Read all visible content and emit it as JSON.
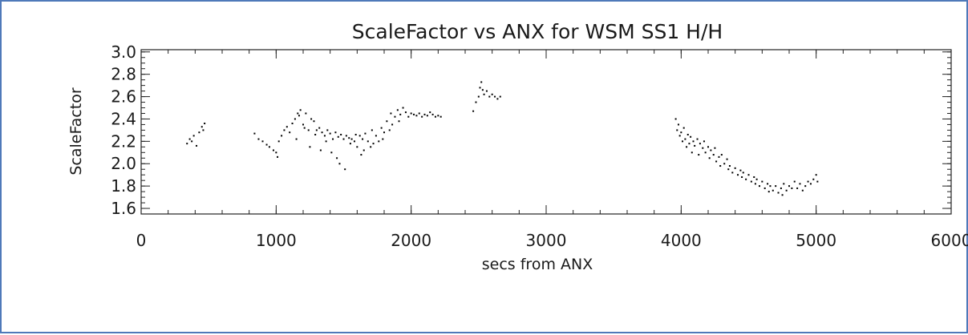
{
  "chart_data": {
    "type": "scatter",
    "title": "ScaleFactor vs ANX for WSM SS1 H/H",
    "xlabel": "secs from ANX",
    "ylabel": "ScaleFactor",
    "xlim": [
      0,
      6000
    ],
    "ylim": [
      1.55,
      3.02
    ],
    "x_ticks": [
      0,
      1000,
      2000,
      3000,
      4000,
      5000,
      6000
    ],
    "x_tick_labels": [
      "0",
      "1000",
      "2000",
      "3000",
      "4000",
      "5000",
      "6000"
    ],
    "y_ticks": [
      1.6,
      1.8,
      2.0,
      2.2,
      2.4,
      2.6,
      2.8,
      3.0
    ],
    "y_tick_labels": [
      "1.6",
      "1.8",
      "2.0",
      "2.2",
      "2.4",
      "2.6",
      "2.8",
      "3.0"
    ],
    "grid": false,
    "legend": "none",
    "marker_color": "#000000",
    "frame_color": "#4f79b9",
    "series": [
      {
        "points": [
          [
            340,
            2.18
          ],
          [
            360,
            2.22
          ],
          [
            375,
            2.2
          ],
          [
            390,
            2.25
          ],
          [
            410,
            2.16
          ],
          [
            430,
            2.28
          ],
          [
            450,
            2.33
          ],
          [
            460,
            2.3
          ],
          [
            470,
            2.36
          ],
          [
            840,
            2.27
          ],
          [
            870,
            2.22
          ],
          [
            900,
            2.2
          ],
          [
            930,
            2.17
          ],
          [
            950,
            2.15
          ],
          [
            980,
            2.12
          ],
          [
            1000,
            2.1
          ],
          [
            1010,
            2.06
          ],
          [
            1020,
            2.2
          ],
          [
            1040,
            2.25
          ],
          [
            1060,
            2.3
          ],
          [
            1080,
            2.33
          ],
          [
            1100,
            2.28
          ],
          [
            1120,
            2.36
          ],
          [
            1140,
            2.4
          ],
          [
            1150,
            2.22
          ],
          [
            1160,
            2.45
          ],
          [
            1170,
            2.43
          ],
          [
            1180,
            2.48
          ],
          [
            1200,
            2.35
          ],
          [
            1210,
            2.32
          ],
          [
            1220,
            2.45
          ],
          [
            1240,
            2.3
          ],
          [
            1250,
            2.15
          ],
          [
            1260,
            2.4
          ],
          [
            1280,
            2.38
          ],
          [
            1290,
            2.26
          ],
          [
            1300,
            2.3
          ],
          [
            1320,
            2.32
          ],
          [
            1330,
            2.12
          ],
          [
            1340,
            2.28
          ],
          [
            1360,
            2.25
          ],
          [
            1370,
            2.2
          ],
          [
            1380,
            2.3
          ],
          [
            1400,
            2.27
          ],
          [
            1410,
            2.1
          ],
          [
            1420,
            2.22
          ],
          [
            1440,
            2.28
          ],
          [
            1450,
            2.05
          ],
          [
            1460,
            2.24
          ],
          [
            1470,
            2.0
          ],
          [
            1480,
            2.26
          ],
          [
            1500,
            2.22
          ],
          [
            1510,
            1.95
          ],
          [
            1520,
            2.25
          ],
          [
            1540,
            2.23
          ],
          [
            1550,
            2.18
          ],
          [
            1560,
            2.22
          ],
          [
            1580,
            2.2
          ],
          [
            1590,
            2.26
          ],
          [
            1600,
            2.15
          ],
          [
            1620,
            2.25
          ],
          [
            1630,
            2.08
          ],
          [
            1640,
            2.22
          ],
          [
            1650,
            2.12
          ],
          [
            1660,
            2.27
          ],
          [
            1680,
            2.2
          ],
          [
            1700,
            2.15
          ],
          [
            1710,
            2.3
          ],
          [
            1720,
            2.18
          ],
          [
            1740,
            2.25
          ],
          [
            1760,
            2.2
          ],
          [
            1780,
            2.32
          ],
          [
            1790,
            2.22
          ],
          [
            1800,
            2.28
          ],
          [
            1820,
            2.38
          ],
          [
            1840,
            2.3
          ],
          [
            1850,
            2.45
          ],
          [
            1860,
            2.35
          ],
          [
            1880,
            2.42
          ],
          [
            1900,
            2.48
          ],
          [
            1910,
            2.38
          ],
          [
            1920,
            2.44
          ],
          [
            1940,
            2.5
          ],
          [
            1960,
            2.46
          ],
          [
            1980,
            2.42
          ],
          [
            2000,
            2.45
          ],
          [
            2020,
            2.44
          ],
          [
            2040,
            2.43
          ],
          [
            2060,
            2.45
          ],
          [
            2080,
            2.42
          ],
          [
            2100,
            2.44
          ],
          [
            2120,
            2.43
          ],
          [
            2140,
            2.46
          ],
          [
            2160,
            2.44
          ],
          [
            2180,
            2.42
          ],
          [
            2200,
            2.43
          ],
          [
            2220,
            2.42
          ],
          [
            2460,
            2.47
          ],
          [
            2480,
            2.55
          ],
          [
            2500,
            2.6
          ],
          [
            2510,
            2.68
          ],
          [
            2520,
            2.73
          ],
          [
            2530,
            2.66
          ],
          [
            2540,
            2.62
          ],
          [
            2560,
            2.65
          ],
          [
            2580,
            2.6
          ],
          [
            2600,
            2.62
          ],
          [
            2620,
            2.6
          ],
          [
            2640,
            2.58
          ],
          [
            2660,
            2.6
          ],
          [
            3960,
            2.4
          ],
          [
            3970,
            2.3
          ],
          [
            3980,
            2.35
          ],
          [
            3990,
            2.25
          ],
          [
            4000,
            2.28
          ],
          [
            4010,
            2.2
          ],
          [
            4020,
            2.32
          ],
          [
            4030,
            2.22
          ],
          [
            4040,
            2.15
          ],
          [
            4050,
            2.26
          ],
          [
            4060,
            2.18
          ],
          [
            4070,
            2.24
          ],
          [
            4080,
            2.1
          ],
          [
            4090,
            2.2
          ],
          [
            4100,
            2.16
          ],
          [
            4120,
            2.22
          ],
          [
            4130,
            2.08
          ],
          [
            4140,
            2.18
          ],
          [
            4160,
            2.14
          ],
          [
            4170,
            2.2
          ],
          [
            4180,
            2.1
          ],
          [
            4200,
            2.15
          ],
          [
            4210,
            2.05
          ],
          [
            4220,
            2.12
          ],
          [
            4240,
            2.08
          ],
          [
            4250,
            2.14
          ],
          [
            4260,
            2.02
          ],
          [
            4280,
            2.06
          ],
          [
            4290,
            1.98
          ],
          [
            4300,
            2.08
          ],
          [
            4320,
            2.0
          ],
          [
            4340,
            2.04
          ],
          [
            4350,
            1.95
          ],
          [
            4360,
            1.98
          ],
          [
            4380,
            1.92
          ],
          [
            4400,
            1.96
          ],
          [
            4420,
            1.9
          ],
          [
            4440,
            1.94
          ],
          [
            4450,
            1.88
          ],
          [
            4460,
            1.92
          ],
          [
            4480,
            1.86
          ],
          [
            4500,
            1.9
          ],
          [
            4520,
            1.84
          ],
          [
            4540,
            1.88
          ],
          [
            4550,
            1.82
          ],
          [
            4560,
            1.86
          ],
          [
            4580,
            1.8
          ],
          [
            4600,
            1.84
          ],
          [
            4620,
            1.78
          ],
          [
            4640,
            1.82
          ],
          [
            4650,
            1.75
          ],
          [
            4660,
            1.8
          ],
          [
            4680,
            1.76
          ],
          [
            4700,
            1.8
          ],
          [
            4720,
            1.74
          ],
          [
            4740,
            1.78
          ],
          [
            4750,
            1.72
          ],
          [
            4760,
            1.82
          ],
          [
            4780,
            1.76
          ],
          [
            4800,
            1.8
          ],
          [
            4820,
            1.78
          ],
          [
            4840,
            1.84
          ],
          [
            4860,
            1.78
          ],
          [
            4880,
            1.82
          ],
          [
            4900,
            1.76
          ],
          [
            4920,
            1.8
          ],
          [
            4940,
            1.84
          ],
          [
            4960,
            1.82
          ],
          [
            4980,
            1.86
          ],
          [
            5000,
            1.9
          ],
          [
            5010,
            1.84
          ]
        ]
      }
    ]
  }
}
